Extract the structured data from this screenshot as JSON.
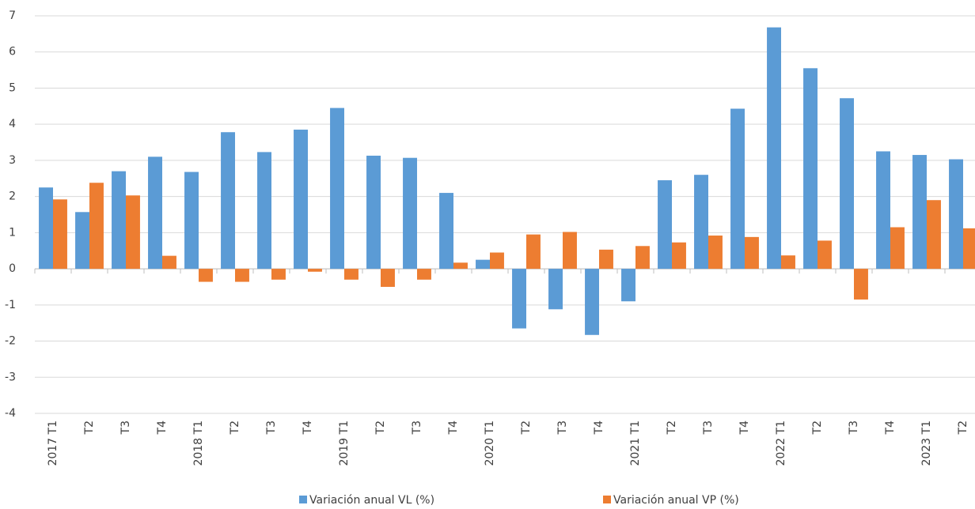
{
  "chart_data": {
    "type": "bar",
    "categories": [
      "2017 T1",
      "T2",
      "T3",
      "T4",
      "2018 T1",
      "T2",
      "T3",
      "T4",
      "2019 T1",
      "T2",
      "T3",
      "T4",
      "2020 T1",
      "T2",
      "T3",
      "T4",
      "2021 T1",
      "T2",
      "T3",
      "T4",
      "2022 T1",
      "T2",
      "T3",
      "T4",
      "2023 T1",
      "T2"
    ],
    "series": [
      {
        "name": "Variación anual VL (%)",
        "color": "#5b9bd5",
        "values": [
          2.25,
          1.57,
          2.7,
          3.1,
          2.68,
          3.78,
          3.23,
          3.85,
          4.45,
          3.13,
          3.07,
          2.1,
          0.25,
          -1.65,
          -1.12,
          -1.83,
          -0.9,
          2.45,
          2.6,
          4.43,
          6.68,
          5.55,
          4.72,
          3.25,
          3.15,
          3.03
        ]
      },
      {
        "name": "Variación anual VP (%)",
        "color": "#ed7d31",
        "values": [
          1.92,
          2.38,
          2.03,
          0.36,
          -0.36,
          -0.36,
          -0.3,
          -0.08,
          -0.3,
          -0.5,
          -0.3,
          0.17,
          0.45,
          0.95,
          1.02,
          0.53,
          0.63,
          0.73,
          0.92,
          0.88,
          0.37,
          0.78,
          -0.85,
          1.15,
          1.9,
          1.12
        ]
      }
    ],
    "ylim": [
      -4,
      7
    ],
    "yticks": [
      -4,
      -3,
      -2,
      -1,
      0,
      1,
      2,
      3,
      4,
      5,
      6,
      7
    ],
    "grid": true
  }
}
